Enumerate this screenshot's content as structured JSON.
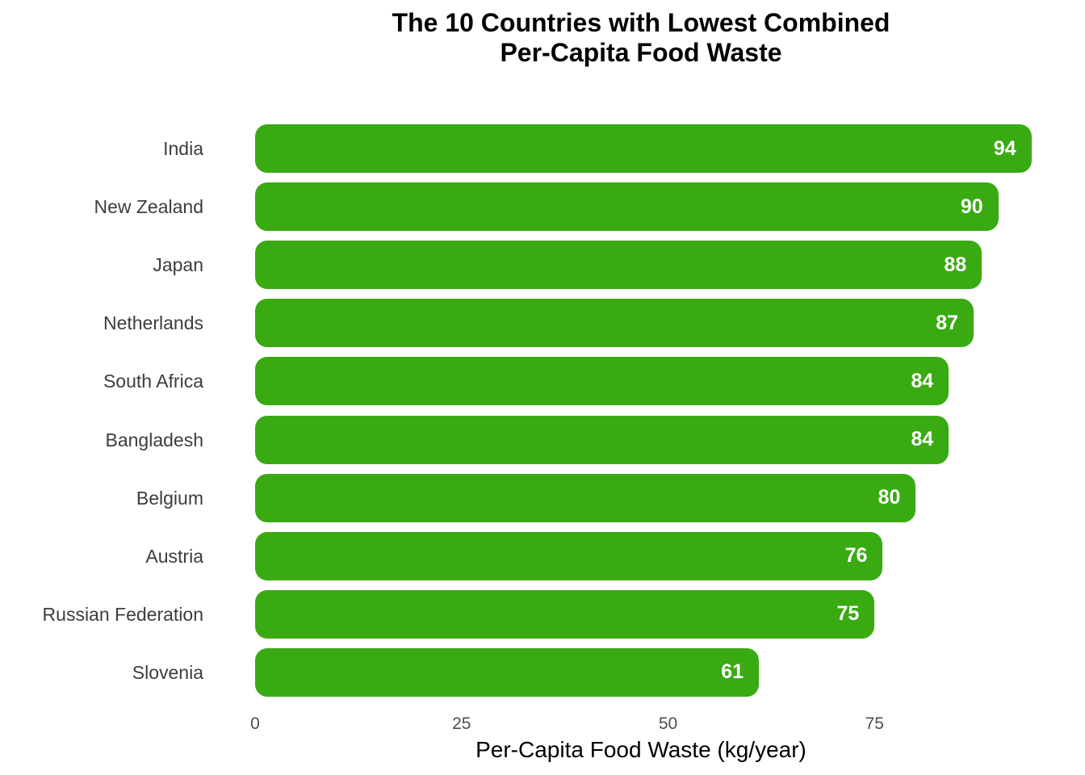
{
  "chart_data": {
    "type": "bar",
    "orientation": "horizontal",
    "title": "The 10 Countries with Lowest Combined Per-Capita Food Waste",
    "title_lines": [
      "The 10 Countries with Lowest Combined",
      "Per-Capita Food Waste"
    ],
    "categories": [
      "India",
      "New Zealand",
      "Japan",
      "Netherlands",
      "South Africa",
      "Bangladesh",
      "Belgium",
      "Austria",
      "Russian Federation",
      "Slovenia"
    ],
    "values": [
      94,
      90,
      88,
      87,
      84,
      84,
      80,
      76,
      75,
      61
    ],
    "xlabel": "Per-Capita Food Waste (kg/year)",
    "ylabel": "",
    "xticks": [
      0,
      25,
      50,
      75
    ],
    "xlim": [
      0,
      98.5
    ],
    "grid": false,
    "legend": false,
    "bar_color": "#39aa12",
    "value_label_color": "#ffffff",
    "category_label_color": "#3d3d3d",
    "tick_label_color": "#4d4d4d",
    "background_color": "#ffffff"
  }
}
